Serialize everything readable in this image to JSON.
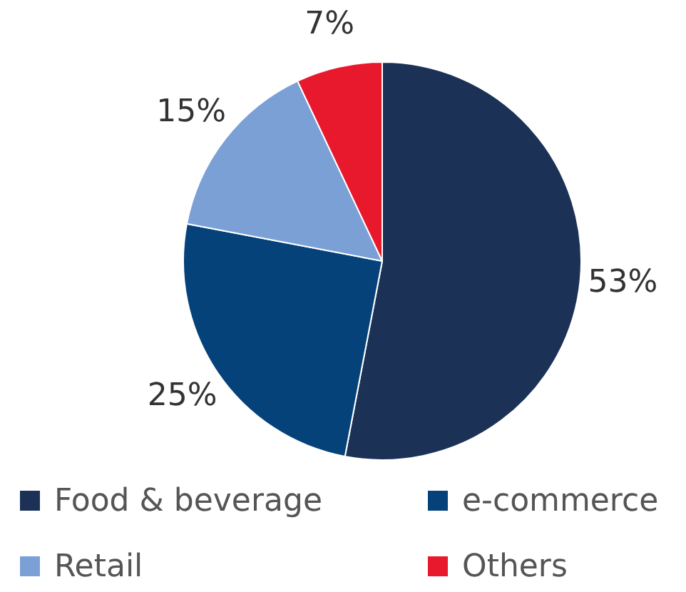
{
  "chart_data": {
    "type": "pie",
    "categories": [
      "Food & beverage",
      "e-commerce",
      "Retail",
      "Others"
    ],
    "values": [
      53,
      25,
      15,
      7
    ],
    "colors": [
      "#1b3256",
      "#06427a",
      "#7ba0d6",
      "#e8192c"
    ],
    "value_labels": [
      "53%",
      "25%",
      "15%",
      "7%"
    ],
    "legend": "bottom"
  }
}
